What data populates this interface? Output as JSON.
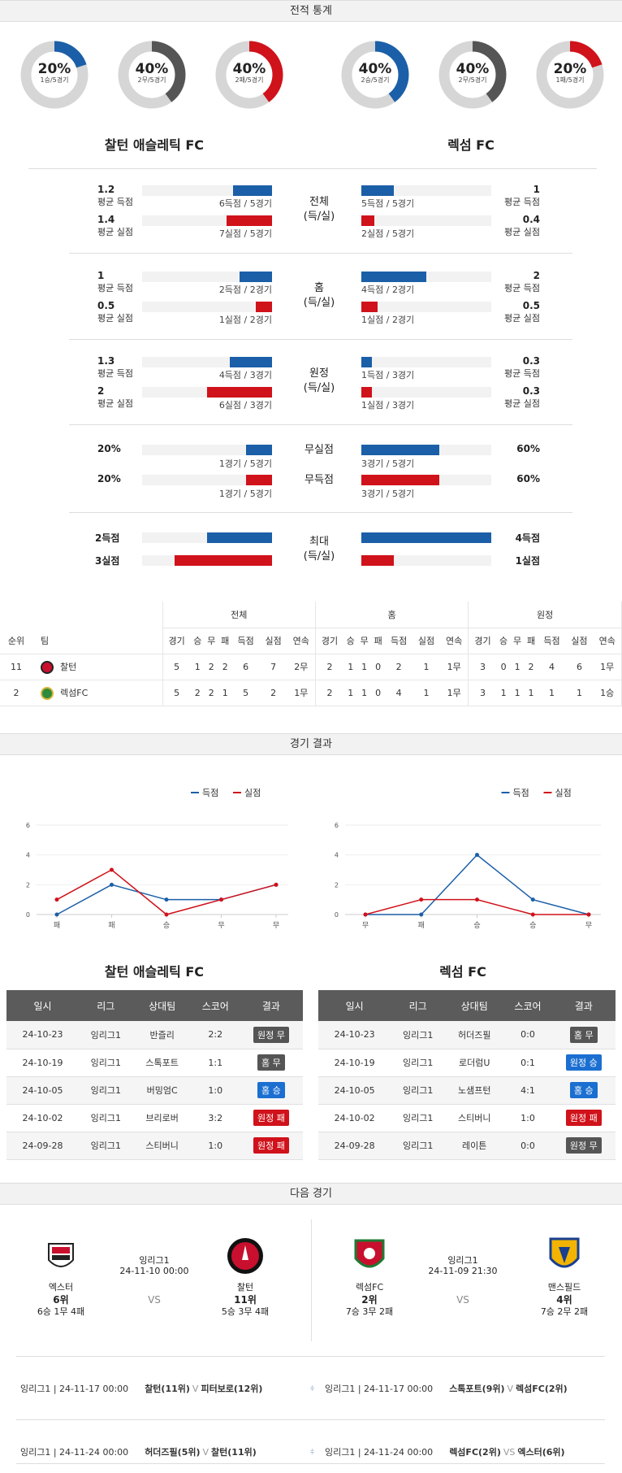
{
  "sections": {
    "stats_title": "전적 통계",
    "result_title": "경기 결과",
    "next_title": "다음 경기"
  },
  "donuts_left": [
    {
      "pct": "20%",
      "sub": "1승/5경기",
      "color": "#1b5fa8",
      "frac": 0.2
    },
    {
      "pct": "40%",
      "sub": "2무/5경기",
      "color": "#555555",
      "frac": 0.4
    },
    {
      "pct": "40%",
      "sub": "2패/5경기",
      "color": "#d0121b",
      "frac": 0.4
    }
  ],
  "donuts_right": [
    {
      "pct": "40%",
      "sub": "2승/5경기",
      "color": "#1b5fa8",
      "frac": 0.4
    },
    {
      "pct": "40%",
      "sub": "2무/5경기",
      "color": "#555555",
      "frac": 0.4
    },
    {
      "pct": "20%",
      "sub": "1패/5경기",
      "color": "#d0121b",
      "frac": 0.2
    }
  ],
  "teams": {
    "home": "찰턴 애슬레틱 FC",
    "away": "렉섬 FC"
  },
  "stat_groups": [
    {
      "label": "전체\n(득/실)",
      "rows": [
        {
          "lv": "1.2",
          "ll": "평균 득점",
          "lt": "6득점 / 5경기",
          "lf": 0.3,
          "rv": "1",
          "rl": "평균 득점",
          "rt": "5득점 / 5경기",
          "rf": 0.25,
          "c": "blue"
        },
        {
          "lv": "1.4",
          "ll": "평균 실점",
          "lt": "7실점 / 5경기",
          "lf": 0.35,
          "rv": "0.4",
          "rl": "평균 실점",
          "rt": "2실점 / 5경기",
          "rf": 0.1,
          "c": "red"
        }
      ]
    },
    {
      "label": "홈\n(득/실)",
      "rows": [
        {
          "lv": "1",
          "ll": "평균 득점",
          "lt": "2득점 / 2경기",
          "lf": 0.25,
          "rv": "2",
          "rl": "평균 득점",
          "rt": "4득점 / 2경기",
          "rf": 0.5,
          "c": "blue"
        },
        {
          "lv": "0.5",
          "ll": "평균 실점",
          "lt": "1실점 / 2경기",
          "lf": 0.125,
          "rv": "0.5",
          "rl": "평균 실점",
          "rt": "1실점 / 2경기",
          "rf": 0.125,
          "c": "red"
        }
      ]
    },
    {
      "label": "원정\n(득/실)",
      "rows": [
        {
          "lv": "1.3",
          "ll": "평균 득점",
          "lt": "4득점 / 3경기",
          "lf": 0.325,
          "rv": "0.3",
          "rl": "평균 득점",
          "rt": "1득점 / 3경기",
          "rf": 0.08,
          "c": "blue"
        },
        {
          "lv": "2",
          "ll": "평균 실점",
          "lt": "6실점 / 3경기",
          "lf": 0.5,
          "rv": "0.3",
          "rl": "평균 실점",
          "rt": "1실점 / 3경기",
          "rf": 0.08,
          "c": "red"
        }
      ]
    }
  ],
  "pct_rows": [
    {
      "label": "무실점",
      "lv": "20%",
      "lt": "1경기 / 5경기",
      "lf": 0.2,
      "rv": "60%",
      "rt": "3경기 / 5경기",
      "rf": 0.6,
      "c": "blue"
    },
    {
      "label": "무득점",
      "lv": "20%",
      "lt": "1경기 / 5경기",
      "lf": 0.2,
      "rv": "60%",
      "rt": "3경기 / 5경기",
      "rf": 0.6,
      "c": "red"
    }
  ],
  "max_group": {
    "label": "최대\n(득/실)",
    "rows": [
      {
        "lv": "2득점",
        "lf": 0.5,
        "rv": "4득점",
        "rf": 1.0,
        "c": "blue"
      },
      {
        "lv": "3실점",
        "lf": 0.75,
        "rv": "1실점",
        "rf": 0.25,
        "c": "red"
      }
    ]
  },
  "standings": {
    "groups": [
      "전체",
      "홈",
      "원정"
    ],
    "rank_h": "순위",
    "team_h": "팀",
    "cols": [
      "경기",
      "승",
      "무",
      "패",
      "득점",
      "실점",
      "연속"
    ],
    "rows": [
      {
        "rank": "11",
        "team": "찰턴",
        "crest": "charlton",
        "all": [
          "5",
          "1",
          "2",
          "2",
          "6",
          "7",
          "2무"
        ],
        "home": [
          "2",
          "1",
          "1",
          "0",
          "2",
          "1",
          "1무"
        ],
        "away": [
          "3",
          "0",
          "1",
          "2",
          "4",
          "6",
          "1무"
        ]
      },
      {
        "rank": "2",
        "team": "렉섬FC",
        "crest": "wrexham",
        "all": [
          "5",
          "2",
          "2",
          "1",
          "5",
          "2",
          "1무"
        ],
        "home": [
          "2",
          "1",
          "1",
          "0",
          "4",
          "1",
          "1무"
        ],
        "away": [
          "3",
          "1",
          "1",
          "1",
          "1",
          "1",
          "1승"
        ]
      }
    ]
  },
  "charts": {
    "legend": {
      "scored": "득점",
      "conceded": "실점"
    },
    "left": {
      "type": "line",
      "x": [
        "패",
        "패",
        "승",
        "무",
        "무"
      ],
      "ylim": [
        0,
        6
      ],
      "yticks": [
        "0",
        "2",
        "4",
        "6"
      ],
      "series": [
        {
          "name": "득점",
          "values": [
            0,
            2,
            1,
            1,
            2
          ]
        },
        {
          "name": "실점",
          "values": [
            1,
            3,
            0,
            1,
            2
          ]
        }
      ]
    },
    "right": {
      "type": "line",
      "x": [
        "무",
        "패",
        "승",
        "승",
        "무"
      ],
      "ylim": [
        0,
        6
      ],
      "yticks": [
        "0",
        "2",
        "4",
        "6"
      ],
      "series": [
        {
          "name": "득점",
          "values": [
            0,
            0,
            4,
            1,
            0
          ]
        },
        {
          "name": "실점",
          "values": [
            0,
            1,
            1,
            0,
            0
          ]
        }
      ]
    }
  },
  "chart_data": [
    {
      "type": "line",
      "categories": [
        "패",
        "패",
        "승",
        "무",
        "무"
      ],
      "series": [
        {
          "name": "득점",
          "values": [
            0,
            2,
            1,
            1,
            2
          ]
        },
        {
          "name": "실점",
          "values": [
            1,
            3,
            0,
            1,
            2
          ]
        }
      ],
      "ylim": [
        0,
        6
      ]
    },
    {
      "type": "line",
      "categories": [
        "무",
        "패",
        "승",
        "승",
        "무"
      ],
      "series": [
        {
          "name": "득점",
          "values": [
            0,
            0,
            4,
            1,
            0
          ]
        },
        {
          "name": "실점",
          "values": [
            0,
            1,
            1,
            0,
            0
          ]
        }
      ],
      "ylim": [
        0,
        6
      ]
    }
  ],
  "results": {
    "headers": [
      "일시",
      "리그",
      "상대팀",
      "스코어",
      "결과"
    ],
    "left": [
      [
        "24-10-23",
        "잉리그1",
        "반즐리",
        "2:2",
        "원정 무",
        "gray"
      ],
      [
        "24-10-19",
        "잉리그1",
        "스톡포트",
        "1:1",
        "홈 무",
        "gray"
      ],
      [
        "24-10-05",
        "잉리그1",
        "버밍엄C",
        "1:0",
        "홈 승",
        "blue"
      ],
      [
        "24-10-02",
        "잉리그1",
        "브리로버",
        "3:2",
        "원정 패",
        "red"
      ],
      [
        "24-09-28",
        "잉리그1",
        "스티버니",
        "1:0",
        "원정 패",
        "red"
      ]
    ],
    "right": [
      [
        "24-10-23",
        "잉리그1",
        "허더즈필",
        "0:0",
        "홈 무",
        "gray"
      ],
      [
        "24-10-19",
        "잉리그1",
        "로더럼U",
        "0:1",
        "원정 승",
        "blue"
      ],
      [
        "24-10-05",
        "잉리그1",
        "노샘프턴",
        "4:1",
        "홈 승",
        "blue"
      ],
      [
        "24-10-02",
        "잉리그1",
        "스티버니",
        "1:0",
        "원정 패",
        "red"
      ],
      [
        "24-09-28",
        "잉리그1",
        "레이튼",
        "0:0",
        "원정 무",
        "gray"
      ]
    ]
  },
  "next": {
    "left": {
      "league": "잉리그1",
      "date": "24-11-10 00:00",
      "vs": "VS",
      "t1": {
        "name": "엑스터",
        "rank": "6위",
        "rec": "6승 1무 4패"
      },
      "t2": {
        "name": "찰턴",
        "rank": "11위",
        "rec": "5승 3무 4패"
      }
    },
    "right": {
      "league": "잉리그1",
      "date": "24-11-09 21:30",
      "vs": "VS",
      "t1": {
        "name": "렉섬FC",
        "rank": "2위",
        "rec": "7승 3무 2패"
      },
      "t2": {
        "name": "맨스필드",
        "rank": "4위",
        "rec": "7승 2무 2패"
      }
    }
  },
  "upcoming": {
    "left": [
      {
        "info": "잉리그1 | 24-11-17 00:00",
        "home": "찰턴(11위)",
        "vs": "V",
        "away": "피터보로(12위)"
      },
      {
        "info": "잉리그1 | 24-11-24 00:00",
        "home": "허더즈필(5위)",
        "vs": "V",
        "away": "찰턴(11위)"
      }
    ],
    "right": [
      {
        "info": "잉리그1 | 24-11-17 00:00",
        "home": "스톡포트(9위)",
        "vs": "V",
        "away": "렉섬FC(2위)"
      },
      {
        "info": "잉리그1 | 24-11-24 00:00",
        "home": "렉섬FC(2위)",
        "vs": "VS",
        "away": "엑스터(6위)"
      }
    ]
  }
}
